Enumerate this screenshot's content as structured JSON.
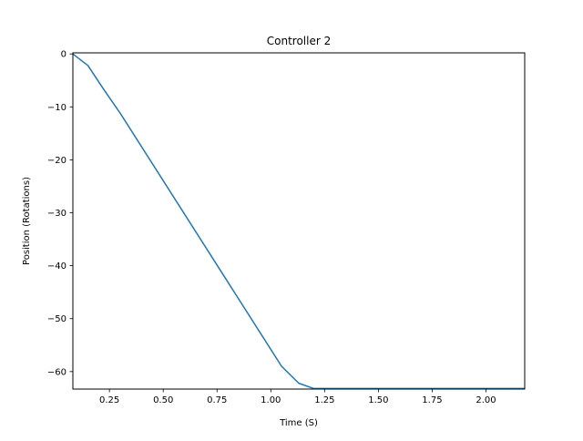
{
  "chart_data": {
    "type": "line",
    "title": "Controller 2",
    "xlabel": "Time (S)",
    "ylabel": "Position (Rotations)",
    "xlim": [
      0.08,
      2.18
    ],
    "ylim": [
      -63.3,
      0.2
    ],
    "x_ticks": [
      0.25,
      0.5,
      0.75,
      1.0,
      1.25,
      1.5,
      1.75,
      2.0
    ],
    "x_tick_labels": [
      "0.25",
      "0.50",
      "0.75",
      "1.00",
      "1.25",
      "1.50",
      "1.75",
      "2.00"
    ],
    "y_ticks": [
      0,
      -10,
      -20,
      -30,
      -40,
      -50,
      -60
    ],
    "y_tick_labels": [
      "0",
      "−10",
      "−20",
      "−30",
      "−40",
      "−50",
      "−60"
    ],
    "grid": false,
    "series": [
      {
        "color": "#1f77b4",
        "x": [
          0.08,
          0.15,
          0.22,
          0.3,
          1.05,
          1.13,
          1.2,
          1.3,
          1.5,
          1.75,
          2.0,
          2.18
        ],
        "y": [
          0.0,
          -2.2,
          -6.5,
          -11.2,
          -59.0,
          -62.2,
          -63.2,
          -63.2,
          -63.2,
          -63.2,
          -63.2,
          -63.2
        ]
      }
    ]
  }
}
